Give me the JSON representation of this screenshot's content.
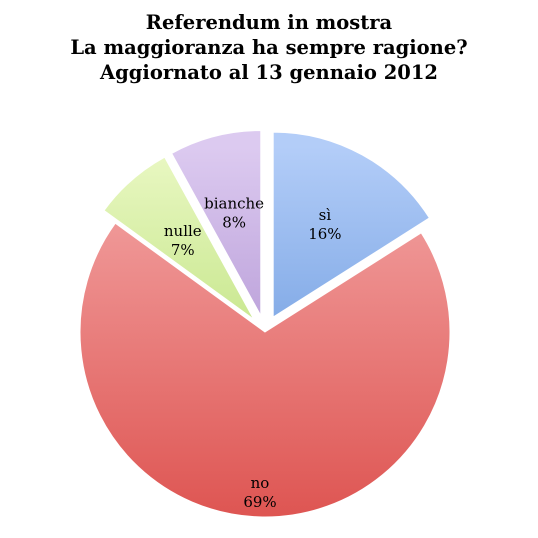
{
  "chart_data": {
    "type": "pie",
    "title": [
      "Referendum in mostra",
      "La maggioranza ha sempre ragione?",
      "Aggiornato al 13 gennaio 2012"
    ],
    "slices": [
      {
        "name": "sì",
        "value": 16,
        "label": "16%",
        "color_top": "#b3cdf8",
        "color_bottom": "#4f86d4",
        "exploded": true
      },
      {
        "name": "no",
        "value": 69,
        "label": "69%",
        "color_top": "#f4a9a9",
        "color_bottom": "#de5552",
        "exploded": false
      },
      {
        "name": "nulle",
        "value": 7,
        "label": "7%",
        "color_top": "#eaf8c4",
        "color_bottom": "#a6d659",
        "exploded": true
      },
      {
        "name": "bianche",
        "value": 8,
        "label": "8%",
        "color_top": "#dccaf0",
        "color_bottom": "#9c79c4",
        "exploded": true
      }
    ],
    "legend": "none"
  }
}
